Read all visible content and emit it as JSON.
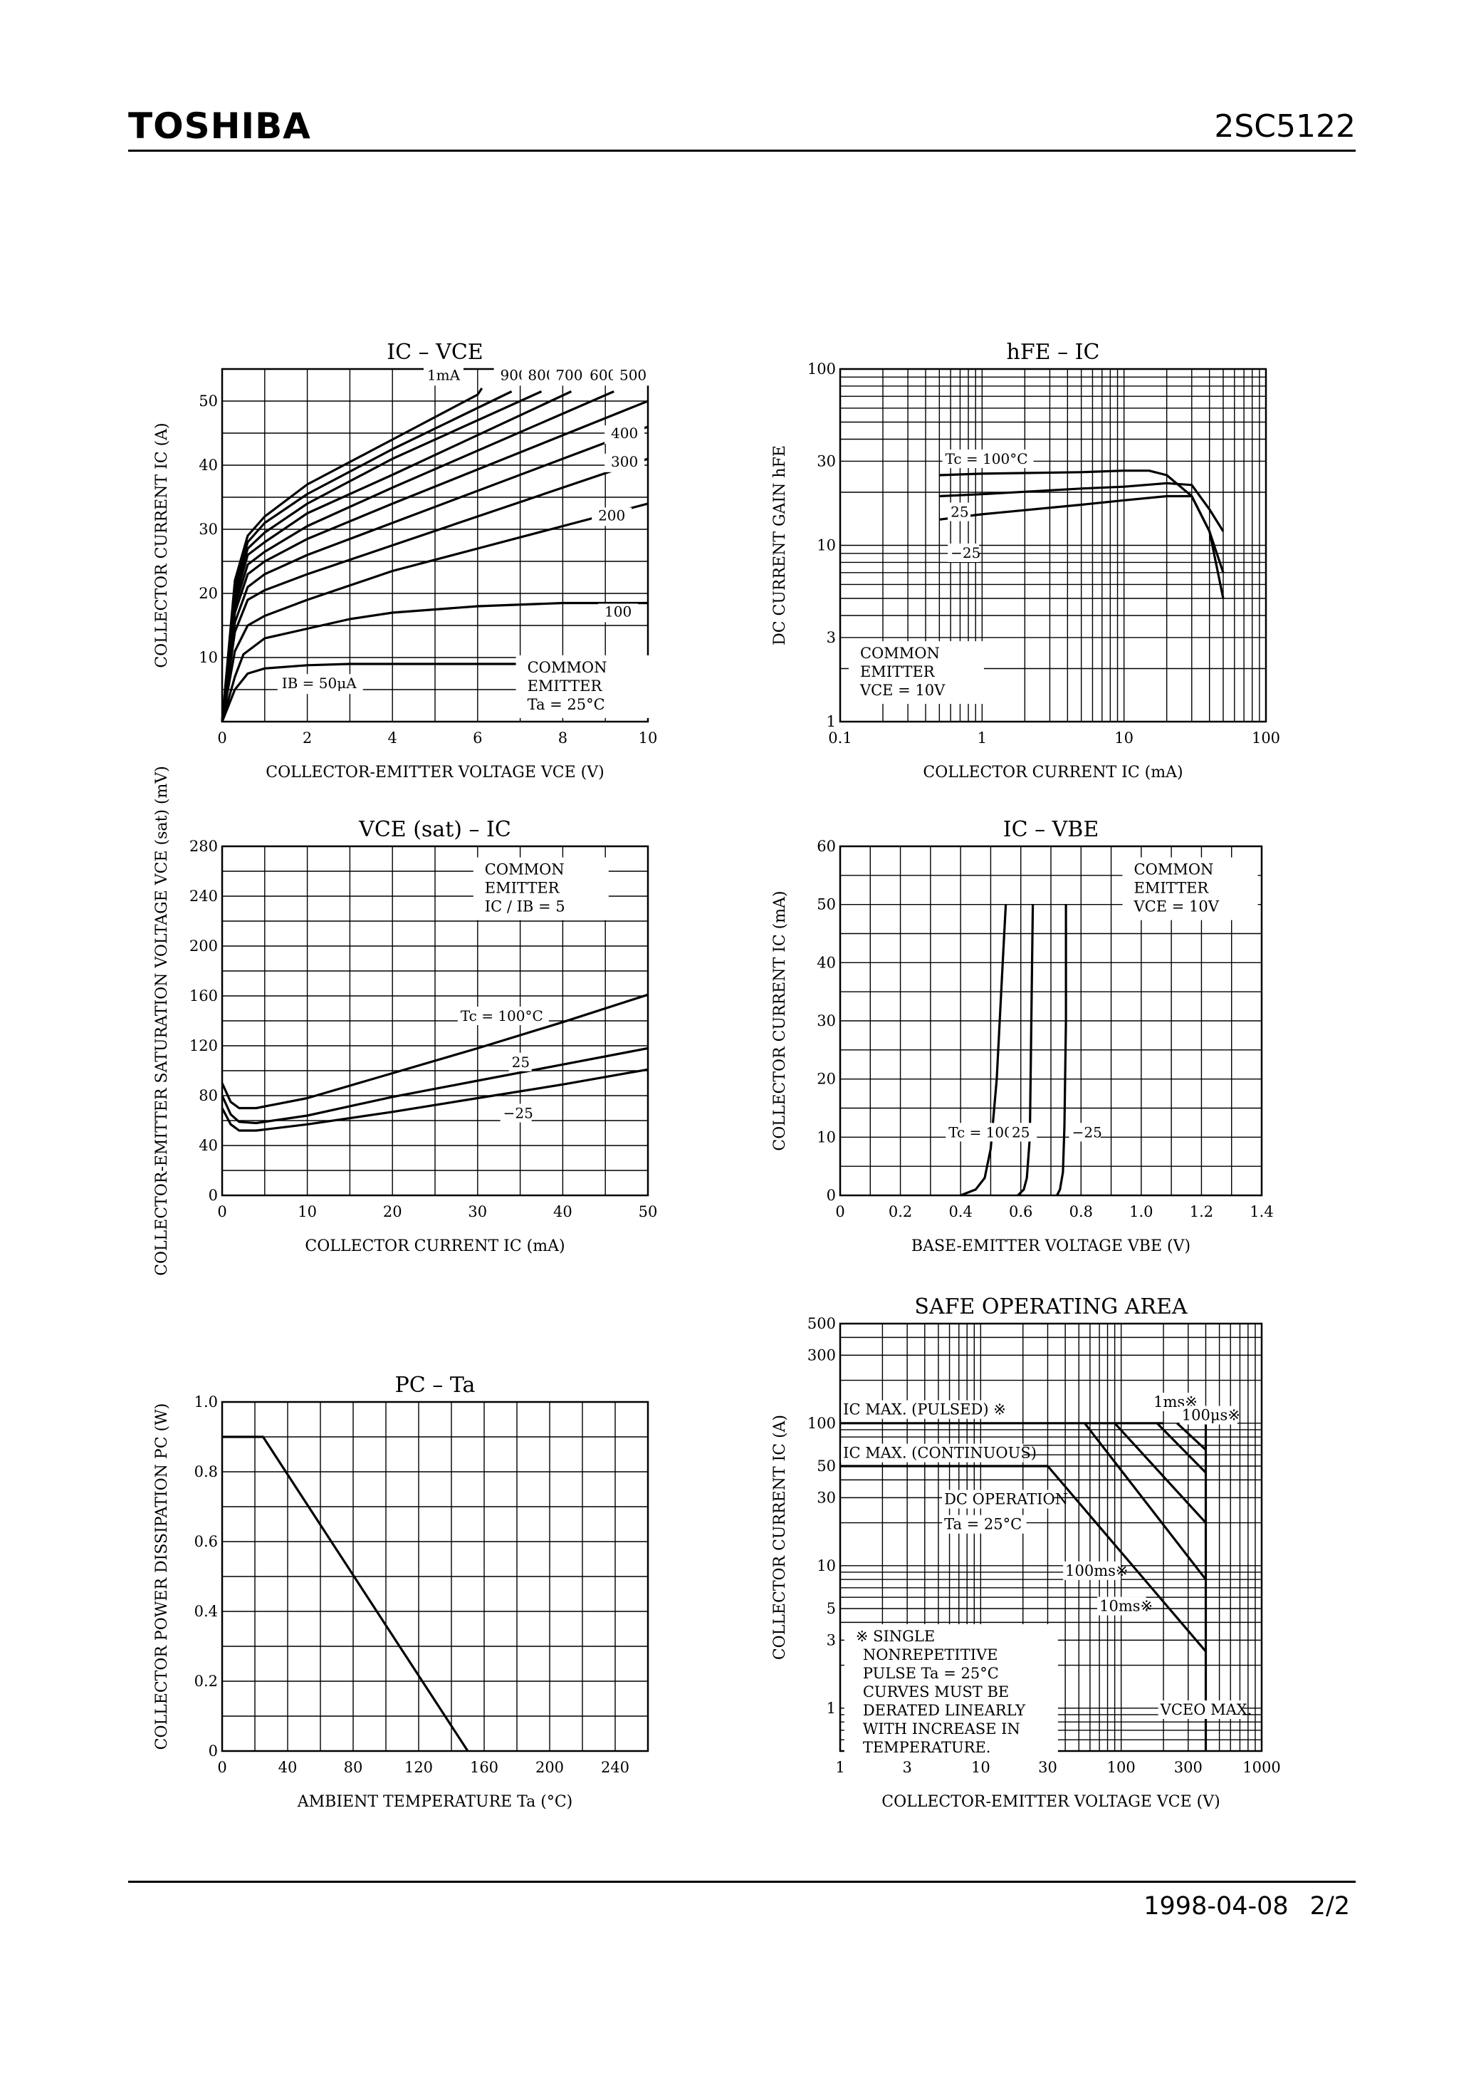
{
  "header": {
    "brand": "TOSHIBA",
    "part_number": "2SC5122"
  },
  "footer": {
    "date": "1998-04-08",
    "page": "2/2"
  },
  "chart_data": [
    {
      "id": "ic-vce",
      "type": "line",
      "title": "IC – VCE",
      "xlabel": "COLLECTOR-EMITTER VOLTAGE VCE (V)",
      "ylabel": "COLLECTOR CURRENT IC (A)",
      "xlim": [
        0,
        10
      ],
      "ylim": [
        0,
        55
      ],
      "xticks": [
        "0",
        "2",
        "4",
        "6",
        "8",
        "10"
      ],
      "yticks": [
        "10",
        "20",
        "30",
        "40",
        "50"
      ],
      "notes": [
        "COMMON",
        "EMITTER",
        "Ta = 25°C"
      ],
      "series_labels": [
        "1mA",
        "900",
        "800",
        "700",
        "600",
        "500",
        "400",
        "300",
        "200",
        "100",
        "IB = 50μA"
      ],
      "series": [
        {
          "name": "1mA",
          "points": [
            [
              0,
              0
            ],
            [
              0.3,
              22
            ],
            [
              0.6,
              29
            ],
            [
              1,
              32
            ],
            [
              2,
              37
            ],
            [
              4,
              44
            ],
            [
              6,
              51
            ],
            [
              6.1,
              52
            ]
          ]
        },
        {
          "name": "900",
          "points": [
            [
              0,
              0
            ],
            [
              0.3,
              21
            ],
            [
              0.6,
              28
            ],
            [
              1,
              31
            ],
            [
              2,
              35.5
            ],
            [
              4,
              42.5
            ],
            [
              6.8,
              51.5
            ]
          ]
        },
        {
          "name": "800",
          "points": [
            [
              0,
              0
            ],
            [
              0.3,
              20
            ],
            [
              0.6,
              27
            ],
            [
              1,
              29.5
            ],
            [
              2,
              34
            ],
            [
              4,
              41
            ],
            [
              7.5,
              51.5
            ]
          ]
        },
        {
          "name": "700",
          "points": [
            [
              0,
              0
            ],
            [
              0.3,
              19
            ],
            [
              0.6,
              26
            ],
            [
              1,
              28
            ],
            [
              2,
              32.5
            ],
            [
              4,
              38.5
            ],
            [
              8.2,
              51.5
            ]
          ]
        },
        {
          "name": "600",
          "points": [
            [
              0,
              0
            ],
            [
              0.3,
              18
            ],
            [
              0.6,
              24.5
            ],
            [
              1,
              26.5
            ],
            [
              2,
              30.5
            ],
            [
              4,
              36.5
            ],
            [
              9.2,
              51.5
            ]
          ]
        },
        {
          "name": "500",
          "points": [
            [
              0,
              0
            ],
            [
              0.3,
              17
            ],
            [
              0.6,
              23
            ],
            [
              1,
              25
            ],
            [
              2,
              28.5
            ],
            [
              4,
              34
            ],
            [
              10,
              50
            ]
          ]
        },
        {
          "name": "400",
          "points": [
            [
              0,
              0
            ],
            [
              0.3,
              15.5
            ],
            [
              0.6,
              21
            ],
            [
              1,
              23
            ],
            [
              2,
              26
            ],
            [
              4,
              31
            ],
            [
              10,
              46
            ]
          ]
        },
        {
          "name": "300",
          "points": [
            [
              0,
              0
            ],
            [
              0.3,
              14
            ],
            [
              0.6,
              19
            ],
            [
              1,
              20.5
            ],
            [
              2,
              23
            ],
            [
              4,
              27.5
            ],
            [
              10,
              41
            ]
          ]
        },
        {
          "name": "200",
          "points": [
            [
              0,
              0
            ],
            [
              0.3,
              11
            ],
            [
              0.6,
              15
            ],
            [
              1,
              16.5
            ],
            [
              2,
              19
            ],
            [
              4,
              23.5
            ],
            [
              6,
              27
            ],
            [
              10,
              34
            ]
          ]
        },
        {
          "name": "100",
          "points": [
            [
              0,
              0
            ],
            [
              0.3,
              7
            ],
            [
              0.5,
              10.5
            ],
            [
              1,
              13
            ],
            [
              2,
              14.5
            ],
            [
              3,
              16
            ],
            [
              4,
              17
            ],
            [
              6,
              18
            ],
            [
              8,
              18.5
            ],
            [
              10,
              18.5
            ]
          ]
        },
        {
          "name": "50μA",
          "points": [
            [
              0,
              0
            ],
            [
              0.3,
              5
            ],
            [
              0.6,
              7.5
            ],
            [
              1,
              8.3
            ],
            [
              2,
              8.8
            ],
            [
              3,
              9
            ],
            [
              10,
              9
            ]
          ]
        }
      ]
    },
    {
      "id": "hfe-ic",
      "type": "line",
      "title": "hFE – IC",
      "xlabel": "COLLECTOR CURRENT IC (mA)",
      "ylabel": "DC CURRENT GAIN hFE",
      "xscale": "log",
      "yscale": "log",
      "xlim": [
        0.1,
        100
      ],
      "ylim": [
        1,
        100
      ],
      "xticks": [
        "0.1",
        "1",
        "10",
        "100"
      ],
      "yticks": [
        "1",
        "3",
        "10",
        "30",
        "100"
      ],
      "notes": [
        "COMMON",
        "EMITTER",
        "VCE = 10V"
      ],
      "series": [
        {
          "name": "Tc = 100°C",
          "points": [
            [
              0.5,
              25
            ],
            [
              1,
              25.5
            ],
            [
              5,
              26
            ],
            [
              10,
              26.5
            ],
            [
              15,
              26.5
            ],
            [
              20,
              25
            ],
            [
              30,
              19
            ],
            [
              40,
              12
            ],
            [
              50,
              7
            ]
          ]
        },
        {
          "name": "25",
          "points": [
            [
              0.5,
              19
            ],
            [
              1,
              19.5
            ],
            [
              5,
              21
            ],
            [
              10,
              21.5
            ],
            [
              20,
              22.5
            ],
            [
              30,
              22
            ],
            [
              40,
              16
            ],
            [
              50,
              12
            ]
          ]
        },
        {
          "name": "−25",
          "points": [
            [
              0.5,
              14
            ],
            [
              1,
              15
            ],
            [
              5,
              17
            ],
            [
              10,
              18
            ],
            [
              20,
              19
            ],
            [
              30,
              19
            ],
            [
              40,
              12
            ],
            [
              50,
              5
            ]
          ]
        }
      ]
    },
    {
      "id": "vcesat-ic",
      "type": "line",
      "title": "VCE (sat) – IC",
      "xlabel": "COLLECTOR CURRENT IC (mA)",
      "ylabel": "COLLECTOR-EMITTER SATURATION VOLTAGE VCE (sat) (mV)",
      "xlim": [
        0,
        50
      ],
      "ylim": [
        0,
        280
      ],
      "xticks": [
        "0",
        "10",
        "20",
        "30",
        "40",
        "50"
      ],
      "yticks": [
        "0",
        "40",
        "80",
        "120",
        "160",
        "200",
        "240",
        "280"
      ],
      "notes": [
        "COMMON",
        "EMITTER",
        "IC / IB = 5"
      ],
      "series": [
        {
          "name": "Tc = 100°C",
          "points": [
            [
              0,
              90
            ],
            [
              1,
              75
            ],
            [
              2,
              70
            ],
            [
              4,
              70
            ],
            [
              10,
              78
            ],
            [
              20,
              98
            ],
            [
              30,
              118
            ],
            [
              40,
              139
            ],
            [
              50,
              161
            ]
          ]
        },
        {
          "name": "25",
          "points": [
            [
              0,
              80
            ],
            [
              1,
              65
            ],
            [
              2,
              59
            ],
            [
              4,
              58
            ],
            [
              10,
              64
            ],
            [
              20,
              79
            ],
            [
              30,
              92
            ],
            [
              40,
              105
            ],
            [
              50,
              118
            ]
          ]
        },
        {
          "name": "−25",
          "points": [
            [
              0,
              70
            ],
            [
              1,
              57
            ],
            [
              2,
              52
            ],
            [
              4,
              52
            ],
            [
              10,
              57
            ],
            [
              20,
              67
            ],
            [
              30,
              78
            ],
            [
              40,
              89
            ],
            [
              50,
              101
            ]
          ]
        }
      ]
    },
    {
      "id": "ic-vbe",
      "type": "line",
      "title": "IC – VBE",
      "xlabel": "BASE-EMITTER VOLTAGE VBE (V)",
      "ylabel": "COLLECTOR CURRENT IC (mA)",
      "xlim": [
        0,
        1.4
      ],
      "ylim": [
        0,
        60
      ],
      "xticks": [
        "0",
        "0.2",
        "0.4",
        "0.6",
        "0.8",
        "1.0",
        "1.2",
        "1.4"
      ],
      "yticks": [
        "0",
        "10",
        "20",
        "30",
        "40",
        "50",
        "60"
      ],
      "notes": [
        "COMMON",
        "EMITTER",
        "VCE = 10V"
      ],
      "series": [
        {
          "name": "Tc = 100°C",
          "points": [
            [
              0.4,
              0
            ],
            [
              0.45,
              1
            ],
            [
              0.48,
              3
            ],
            [
              0.5,
              8
            ],
            [
              0.52,
              20
            ],
            [
              0.54,
              40
            ],
            [
              0.55,
              50
            ]
          ]
        },
        {
          "name": "25",
          "points": [
            [
              0.59,
              0
            ],
            [
              0.61,
              1
            ],
            [
              0.62,
              3
            ],
            [
              0.63,
              10
            ],
            [
              0.635,
              30
            ],
            [
              0.64,
              50
            ]
          ]
        },
        {
          "name": "−25",
          "points": [
            [
              0.72,
              0
            ],
            [
              0.73,
              1
            ],
            [
              0.74,
              4
            ],
            [
              0.745,
              12
            ],
            [
              0.75,
              30
            ],
            [
              0.75,
              50
            ]
          ]
        }
      ]
    },
    {
      "id": "pc-ta",
      "type": "line",
      "title": "PC – Ta",
      "xlabel": "AMBIENT TEMPERATURE Ta (°C)",
      "ylabel": "COLLECTOR POWER DISSIPATION PC (W)",
      "xlim": [
        0,
        260
      ],
      "ylim": [
        0,
        1.0
      ],
      "xticks": [
        "0",
        "40",
        "80",
        "120",
        "160",
        "200",
        "240"
      ],
      "yticks": [
        "0",
        "0.2",
        "0.4",
        "0.6",
        "0.8",
        "1.0"
      ],
      "series": [
        {
          "name": "PC",
          "points": [
            [
              0,
              0.9
            ],
            [
              25,
              0.9
            ],
            [
              150,
              0
            ]
          ]
        }
      ]
    },
    {
      "id": "soa",
      "type": "line",
      "title": "SAFE OPERATING AREA",
      "xlabel": "COLLECTOR-EMITTER VOLTAGE VCE (V)",
      "ylabel": "COLLECTOR CURRENT IC (A)",
      "xscale": "log",
      "yscale": "log",
      "xlim": [
        1,
        1000
      ],
      "ylim": [
        0.5,
        500
      ],
      "xticks": [
        "1",
        "3",
        "10",
        "30",
        "100",
        "300",
        "1000"
      ],
      "yticks": [
        "1",
        "3",
        "5",
        "10",
        "30",
        "50",
        "100",
        "300",
        "500"
      ],
      "labels": [
        "IC MAX. (PULSED) ※",
        "IC MAX. (CONTINUOUS)",
        "1ms※",
        "100μs※",
        "DC OPERATION",
        "Ta = 25°C",
        "100ms※",
        "10ms※",
        "VCEO MAX."
      ],
      "notes": [
        "※ SINGLE",
        "NONREPETITIVE",
        "PULSE Ta = 25°C",
        "CURVES MUST BE",
        "DERATED LINEARLY",
        "WITH INCREASE IN",
        "TEMPERATURE."
      ],
      "series": [
        {
          "name": "IC MAX. (PULSED)",
          "points": [
            [
              1,
              100
            ],
            [
              200,
              100
            ]
          ]
        },
        {
          "name": "IC MAX. (CONTINUOUS)",
          "points": [
            [
              1,
              50
            ],
            [
              30,
              50
            ]
          ]
        },
        {
          "name": "DC",
          "points": [
            [
              30,
              50
            ],
            [
              400,
              2.5
            ]
          ]
        },
        {
          "name": "100ms",
          "points": [
            [
              55,
              100
            ],
            [
              400,
              8
            ]
          ]
        },
        {
          "name": "10ms",
          "points": [
            [
              90,
              100
            ],
            [
              400,
              20
            ]
          ]
        },
        {
          "name": "1ms",
          "points": [
            [
              180,
              100
            ],
            [
              400,
              45
            ]
          ]
        },
        {
          "name": "100μs",
          "points": [
            [
              250,
              100
            ],
            [
              400,
              65
            ]
          ]
        },
        {
          "name": "VCEO MAX.",
          "points": [
            [
              400,
              0.5
            ],
            [
              400,
              100
            ]
          ]
        }
      ]
    }
  ]
}
